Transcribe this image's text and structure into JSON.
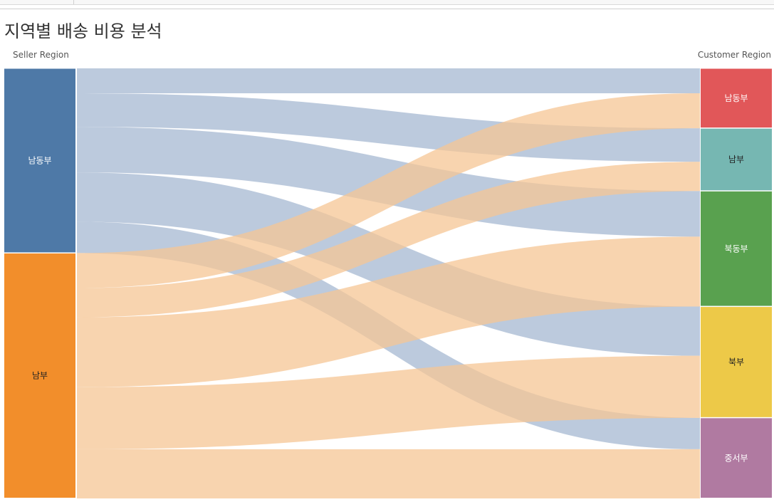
{
  "title": "지역별 배송 비용 분석",
  "left_axis_label": "Seller Region",
  "right_axis_label": "Customer Region",
  "colors": {
    "seller": {
      "남동부": "#4e79a7",
      "남부": "#f28e2b"
    },
    "customer": {
      "남동부": "#e15759",
      "남부": "#76b7b2",
      "북동부": "#59a14f",
      "북부": "#edc948",
      "중서부": "#b07aa1"
    },
    "link": {
      "남동부": "#a6b8d1",
      "남부": "#f6c594"
    }
  },
  "chart_data": {
    "type": "sankey",
    "sources": [
      "남동부",
      "남부"
    ],
    "targets": [
      "남동부",
      "남부",
      "북동부",
      "북부",
      "중서부"
    ],
    "links": [
      {
        "source": "남동부",
        "target": "남동부",
        "value": 35
      },
      {
        "source": "남동부",
        "target": "남부",
        "value": 47
      },
      {
        "source": "남동부",
        "target": "북동부",
        "value": 64
      },
      {
        "source": "남동부",
        "target": "북부",
        "value": 69
      },
      {
        "source": "남동부",
        "target": "중서부",
        "value": 44
      },
      {
        "source": "남부",
        "target": "남동부",
        "value": 49
      },
      {
        "source": "남부",
        "target": "남부",
        "value": 41
      },
      {
        "source": "남부",
        "target": "북동부",
        "value": 98
      },
      {
        "source": "남부",
        "target": "북부",
        "value": 87
      },
      {
        "source": "남부",
        "target": "중서부",
        "value": 69
      }
    ]
  }
}
